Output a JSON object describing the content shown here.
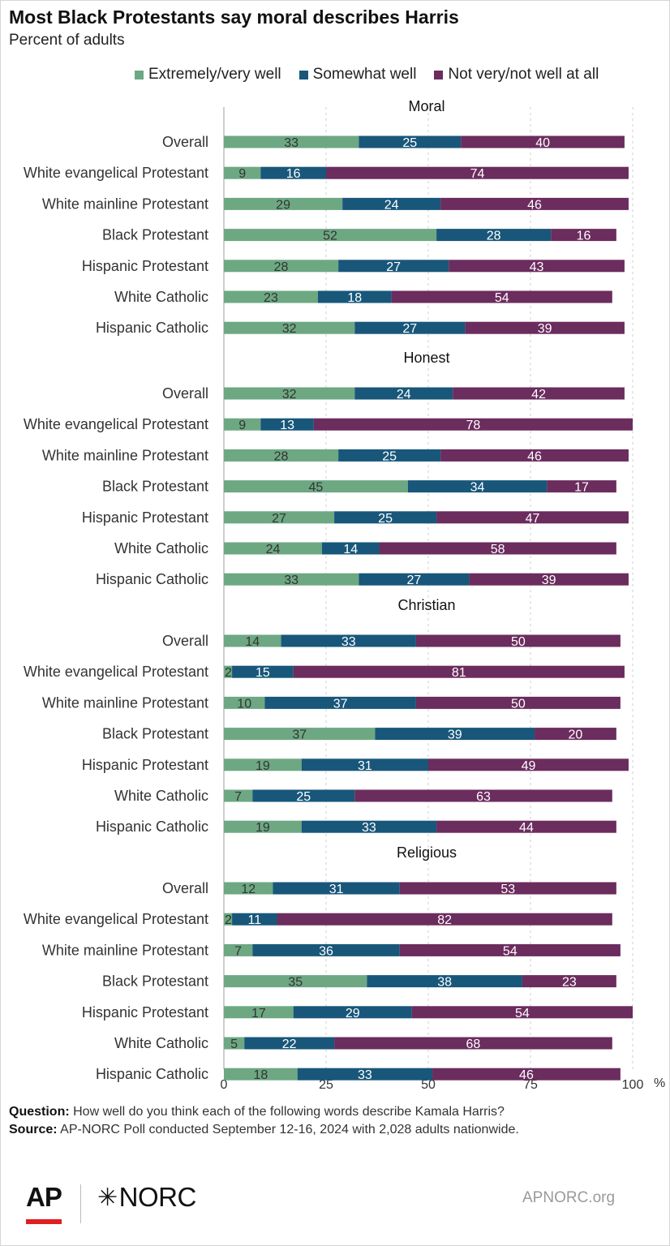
{
  "header": {
    "title": "Most Black Protestants say moral describes Harris",
    "subtitle": "Percent of adults"
  },
  "footer": {
    "question_label": "Question:",
    "question_text": " How well do you think each of the following words describe Kamala Harris?",
    "source_label": "Source:",
    "source_text": " AP-NORC Poll conducted September 12-16, 2024 with 2,028 adults nationwide.",
    "logo_ap": "AP",
    "logo_norc": "NORC",
    "site": "APNORC.org"
  },
  "colors": {
    "extremely_very_well": "#6da883",
    "somewhat_well": "#18577a",
    "not_very_not_well": "#6b2c5e"
  },
  "icons": [
    "ap-logo",
    "norc-star-icon"
  ],
  "chart_data": {
    "type": "bar",
    "orientation": "horizontal",
    "stacked": true,
    "title": "Most Black Protestants say moral describes Harris",
    "subtitle": "Percent of adults",
    "xlim": [
      0,
      100
    ],
    "xticks": [
      0,
      25,
      50,
      75,
      100
    ],
    "x_unit": "%",
    "grid": true,
    "legend_position": "top-right",
    "series": [
      {
        "name": "Extremely/very well",
        "color": "#6da883"
      },
      {
        "name": "Somewhat well",
        "color": "#18577a"
      },
      {
        "name": "Not very/not well at all",
        "color": "#6b2c5e"
      }
    ],
    "panels": [
      {
        "title": "Moral",
        "rows": [
          {
            "label": "Overall",
            "values": [
              33,
              25,
              40
            ]
          },
          {
            "label": "White evangelical Protestant",
            "values": [
              9,
              16,
              74
            ]
          },
          {
            "label": "White mainline Protestant",
            "values": [
              29,
              24,
              46
            ]
          },
          {
            "label": "Black Protestant",
            "values": [
              52,
              28,
              16
            ]
          },
          {
            "label": "Hispanic Protestant",
            "values": [
              28,
              27,
              43
            ]
          },
          {
            "label": "White Catholic",
            "values": [
              23,
              18,
              54
            ]
          },
          {
            "label": "Hispanic Catholic",
            "values": [
              32,
              27,
              39
            ]
          }
        ]
      },
      {
        "title": "Honest",
        "rows": [
          {
            "label": "Overall",
            "values": [
              32,
              24,
              42
            ]
          },
          {
            "label": "White evangelical Protestant",
            "values": [
              9,
              13,
              78
            ]
          },
          {
            "label": "White mainline Protestant",
            "values": [
              28,
              25,
              46
            ]
          },
          {
            "label": "Black Protestant",
            "values": [
              45,
              34,
              17
            ]
          },
          {
            "label": "Hispanic  Protestant",
            "values": [
              27,
              25,
              47
            ]
          },
          {
            "label": "White Catholic",
            "values": [
              24,
              14,
              58
            ]
          },
          {
            "label": "Hispanic Catholic",
            "values": [
              33,
              27,
              39
            ]
          }
        ]
      },
      {
        "title": "Christian",
        "rows": [
          {
            "label": "Overall",
            "values": [
              14,
              33,
              50
            ]
          },
          {
            "label": "White evangelical Protestant",
            "values": [
              2,
              15,
              81
            ]
          },
          {
            "label": "White mainline Protestant",
            "values": [
              10,
              37,
              50
            ]
          },
          {
            "label": "Black Protestant",
            "values": [
              37,
              39,
              20
            ]
          },
          {
            "label": "Hispanic Protestant",
            "values": [
              19,
              31,
              49
            ]
          },
          {
            "label": "White Catholic",
            "values": [
              7,
              25,
              63
            ]
          },
          {
            "label": "Hispanic Catholic",
            "values": [
              19,
              33,
              44
            ]
          }
        ]
      },
      {
        "title": "Religious",
        "rows": [
          {
            "label": "Overall",
            "values": [
              12,
              31,
              53
            ]
          },
          {
            "label": "White evangelical Protestant",
            "values": [
              2,
              11,
              82
            ]
          },
          {
            "label": "White mainline Protestant",
            "values": [
              7,
              36,
              54
            ]
          },
          {
            "label": "Black Protestant",
            "values": [
              35,
              38,
              23
            ]
          },
          {
            "label": "Hispanic Protestant",
            "values": [
              17,
              29,
              54
            ]
          },
          {
            "label": "White Catholic",
            "values": [
              5,
              22,
              68
            ]
          },
          {
            "label": "Hispanic Catholic",
            "values": [
              18,
              33,
              46
            ]
          }
        ]
      }
    ]
  }
}
